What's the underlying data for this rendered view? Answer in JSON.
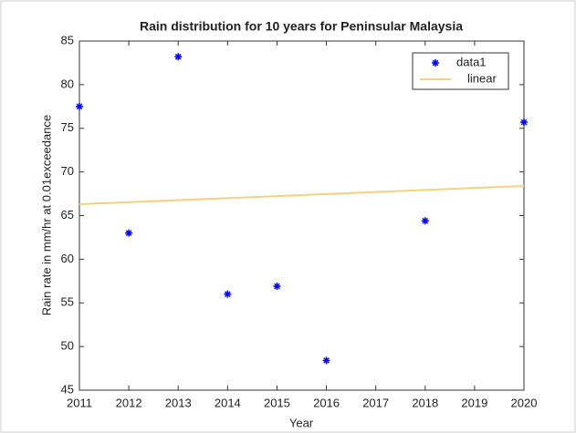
{
  "chart_data": {
    "type": "scatter",
    "title": "Rain distribution for 10 years for Peninsular Malaysia",
    "x_label": "Year",
    "y_label": "Rain rate in mm/hr at 0.01exceedance",
    "xlim": [
      2011,
      2020
    ],
    "xticks": [
      2011,
      2012,
      2013,
      2014,
      2015,
      2016,
      2017,
      2018,
      2019,
      2020
    ],
    "ylim": [
      45,
      85
    ],
    "yticks": [
      45,
      50,
      55,
      60,
      65,
      70,
      75,
      80,
      85
    ],
    "legend": "top-right",
    "series": [
      {
        "name": "data1",
        "color": "#0000ff",
        "x": [
          2011,
          2012,
          2013,
          2014,
          2015,
          2016,
          2018,
          2020
        ],
        "values": [
          77.5,
          63.0,
          83.2,
          56.0,
          56.9,
          48.4,
          64.4,
          75.7
        ]
      },
      {
        "name": "linear",
        "color": "#f5d27a",
        "x": [
          2011,
          2020
        ],
        "values": [
          66.3,
          68.4
        ]
      }
    ]
  }
}
